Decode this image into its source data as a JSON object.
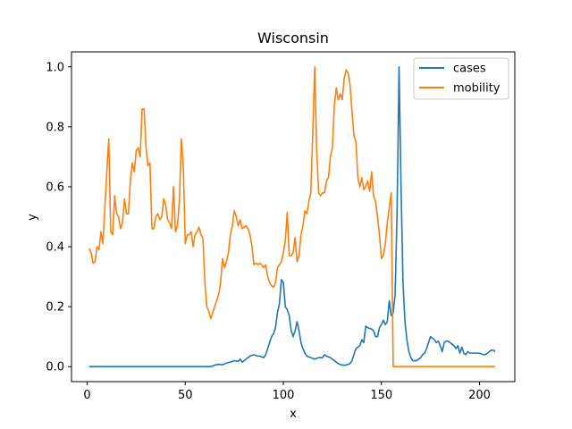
{
  "chart_data": {
    "type": "line",
    "title": "Wisconsin",
    "xlabel": "x",
    "ylabel": "y",
    "xlim": [
      -8,
      218
    ],
    "ylim": [
      -0.05,
      1.05
    ],
    "xticks": [
      0,
      50,
      100,
      150,
      200
    ],
    "yticks": [
      0.0,
      0.2,
      0.4,
      0.6,
      0.8,
      1.0
    ],
    "grid": false,
    "legend_position": "top-right",
    "series": [
      {
        "name": "cases",
        "color": "#1f77b4",
        "points": [
          [
            1,
            0
          ],
          [
            10,
            0
          ],
          [
            20,
            0
          ],
          [
            30,
            0
          ],
          [
            40,
            0
          ],
          [
            50,
            0
          ],
          [
            60,
            0
          ],
          [
            63,
            0
          ],
          [
            65,
            0.005
          ],
          [
            67,
            0.008
          ],
          [
            69,
            0.006
          ],
          [
            71,
            0.012
          ],
          [
            73,
            0.015
          ],
          [
            75,
            0.02
          ],
          [
            77,
            0.018
          ],
          [
            78,
            0.025
          ],
          [
            79,
            0.015
          ],
          [
            81,
            0.025
          ],
          [
            83,
            0.035
          ],
          [
            85,
            0.04
          ],
          [
            87,
            0.035
          ],
          [
            88,
            0.035
          ],
          [
            90,
            0.03
          ],
          [
            91,
            0.04
          ],
          [
            92,
            0.06
          ],
          [
            93,
            0.08
          ],
          [
            94,
            0.1
          ],
          [
            95,
            0.11
          ],
          [
            96,
            0.13
          ],
          [
            97,
            0.18
          ],
          [
            98,
            0.21
          ],
          [
            99,
            0.29
          ],
          [
            100,
            0.28
          ],
          [
            101,
            0.2
          ],
          [
            102,
            0.19
          ],
          [
            103,
            0.17
          ],
          [
            104,
            0.12
          ],
          [
            105,
            0.1
          ],
          [
            106,
            0.12
          ],
          [
            107,
            0.15
          ],
          [
            108,
            0.12
          ],
          [
            109,
            0.08
          ],
          [
            110,
            0.06
          ],
          [
            111,
            0.045
          ],
          [
            112,
            0.035
          ],
          [
            114,
            0.03
          ],
          [
            116,
            0.025
          ],
          [
            118,
            0.03
          ],
          [
            120,
            0.03
          ],
          [
            121,
            0.04
          ],
          [
            122,
            0.035
          ],
          [
            124,
            0.03
          ],
          [
            126,
            0.02
          ],
          [
            127,
            0.015
          ],
          [
            128,
            0.01
          ],
          [
            130,
            0.005
          ],
          [
            132,
            0.005
          ],
          [
            134,
            0.01
          ],
          [
            135,
            0.02
          ],
          [
            136,
            0.04
          ],
          [
            137,
            0.06
          ],
          [
            139,
            0.07
          ],
          [
            140,
            0.09
          ],
          [
            141,
            0.08
          ],
          [
            142,
            0.135
          ],
          [
            143,
            0.13
          ],
          [
            145,
            0.125
          ],
          [
            146,
            0.12
          ],
          [
            147,
            0.1
          ],
          [
            148,
            0.1
          ],
          [
            149,
            0.13
          ],
          [
            150,
            0.14
          ],
          [
            151,
            0.155
          ],
          [
            152,
            0.14
          ],
          [
            153,
            0.15
          ],
          [
            154,
            0.22
          ],
          [
            155,
            0.17
          ],
          [
            156,
            0.18
          ],
          [
            157,
            0.24
          ],
          [
            158,
            0.52
          ],
          [
            159,
            1.0
          ],
          [
            160,
            0.6
          ],
          [
            161,
            0.28
          ],
          [
            162,
            0.15
          ],
          [
            163,
            0.09
          ],
          [
            164,
            0.05
          ],
          [
            165,
            0.03
          ],
          [
            166,
            0.02
          ],
          [
            168,
            0.02
          ],
          [
            169,
            0.025
          ],
          [
            170,
            0.03
          ],
          [
            171,
            0.04
          ],
          [
            172,
            0.045
          ],
          [
            173,
            0.06
          ],
          [
            174,
            0.08
          ],
          [
            175,
            0.1
          ],
          [
            176,
            0.095
          ],
          [
            177,
            0.09
          ],
          [
            178,
            0.08
          ],
          [
            179,
            0.085
          ],
          [
            180,
            0.07
          ],
          [
            181,
            0.05
          ],
          [
            182,
            0.08
          ],
          [
            183,
            0.085
          ],
          [
            184,
            0.085
          ],
          [
            185,
            0.08
          ],
          [
            186,
            0.075
          ],
          [
            187,
            0.07
          ],
          [
            188,
            0.06
          ],
          [
            189,
            0.07
          ],
          [
            190,
            0.045
          ],
          [
            191,
            0.065
          ],
          [
            192,
            0.045
          ],
          [
            193,
            0.04
          ],
          [
            194,
            0.05
          ],
          [
            195,
            0.045
          ],
          [
            196,
            0.045
          ],
          [
            198,
            0.045
          ],
          [
            200,
            0.045
          ],
          [
            202,
            0.04
          ],
          [
            203,
            0.04
          ],
          [
            204,
            0.045
          ],
          [
            205,
            0.05
          ],
          [
            206,
            0.055
          ],
          [
            207,
            0.055
          ],
          [
            208,
            0.05
          ]
        ]
      },
      {
        "name": "mobility",
        "color": "#ff7f0e",
        "points": [
          [
            1,
            0.395
          ],
          [
            2,
            0.38
          ],
          [
            3,
            0.345
          ],
          [
            4,
            0.35
          ],
          [
            5,
            0.4
          ],
          [
            6,
            0.39
          ],
          [
            7,
            0.45
          ],
          [
            8,
            0.41
          ],
          [
            9,
            0.53
          ],
          [
            10,
            0.65
          ],
          [
            11,
            0.76
          ],
          [
            12,
            0.45
          ],
          [
            13,
            0.44
          ],
          [
            14,
            0.57
          ],
          [
            15,
            0.51
          ],
          [
            16,
            0.5
          ],
          [
            17,
            0.46
          ],
          [
            18,
            0.48
          ],
          [
            19,
            0.56
          ],
          [
            20,
            0.51
          ],
          [
            21,
            0.51
          ],
          [
            22,
            0.62
          ],
          [
            23,
            0.68
          ],
          [
            24,
            0.65
          ],
          [
            25,
            0.72
          ],
          [
            26,
            0.73
          ],
          [
            27,
            0.7
          ],
          [
            28,
            0.86
          ],
          [
            29,
            0.86
          ],
          [
            30,
            0.73
          ],
          [
            31,
            0.67
          ],
          [
            32,
            0.68
          ],
          [
            33,
            0.46
          ],
          [
            34,
            0.46
          ],
          [
            35,
            0.5
          ],
          [
            36,
            0.51
          ],
          [
            37,
            0.49
          ],
          [
            38,
            0.5
          ],
          [
            39,
            0.56
          ],
          [
            40,
            0.54
          ],
          [
            41,
            0.49
          ],
          [
            42,
            0.48
          ],
          [
            43,
            0.46
          ],
          [
            44,
            0.6
          ],
          [
            45,
            0.45
          ],
          [
            46,
            0.47
          ],
          [
            47,
            0.55
          ],
          [
            48,
            0.76
          ],
          [
            49,
            0.67
          ],
          [
            50,
            0.41
          ],
          [
            51,
            0.44
          ],
          [
            52,
            0.44
          ],
          [
            53,
            0.45
          ],
          [
            54,
            0.4
          ],
          [
            55,
            0.44
          ],
          [
            56,
            0.45
          ],
          [
            57,
            0.465
          ],
          [
            58,
            0.44
          ],
          [
            59,
            0.43
          ],
          [
            60,
            0.28
          ],
          [
            61,
            0.2
          ],
          [
            62,
            0.185
          ],
          [
            63,
            0.16
          ],
          [
            64,
            0.18
          ],
          [
            65,
            0.2
          ],
          [
            66,
            0.22
          ],
          [
            67,
            0.24
          ],
          [
            68,
            0.28
          ],
          [
            69,
            0.36
          ],
          [
            70,
            0.33
          ],
          [
            71,
            0.35
          ],
          [
            72,
            0.38
          ],
          [
            73,
            0.44
          ],
          [
            74,
            0.47
          ],
          [
            75,
            0.52
          ],
          [
            76,
            0.5
          ],
          [
            77,
            0.47
          ],
          [
            78,
            0.49
          ],
          [
            79,
            0.46
          ],
          [
            80,
            0.465
          ],
          [
            81,
            0.47
          ],
          [
            82,
            0.46
          ],
          [
            83,
            0.44
          ],
          [
            84,
            0.4
          ],
          [
            85,
            0.34
          ],
          [
            86,
            0.345
          ],
          [
            87,
            0.34
          ],
          [
            88,
            0.345
          ],
          [
            89,
            0.34
          ],
          [
            90,
            0.33
          ],
          [
            91,
            0.34
          ],
          [
            92,
            0.3
          ],
          [
            93,
            0.28
          ],
          [
            94,
            0.27
          ],
          [
            95,
            0.265
          ],
          [
            96,
            0.28
          ],
          [
            97,
            0.33
          ],
          [
            98,
            0.34
          ],
          [
            99,
            0.35
          ],
          [
            100,
            0.38
          ],
          [
            101,
            0.42
          ],
          [
            102,
            0.515
          ],
          [
            103,
            0.37
          ],
          [
            104,
            0.37
          ],
          [
            105,
            0.38
          ],
          [
            106,
            0.43
          ],
          [
            107,
            0.35
          ],
          [
            108,
            0.37
          ],
          [
            109,
            0.44
          ],
          [
            110,
            0.47
          ],
          [
            111,
            0.52
          ],
          [
            112,
            0.51
          ],
          [
            113,
            0.55
          ],
          [
            114,
            0.58
          ],
          [
            115,
            0.78
          ],
          [
            116,
            1.0
          ],
          [
            117,
            0.72
          ],
          [
            118,
            0.58
          ],
          [
            119,
            0.57
          ],
          [
            120,
            0.58
          ],
          [
            121,
            0.58
          ],
          [
            122,
            0.62
          ],
          [
            123,
            0.63
          ],
          [
            124,
            0.7
          ],
          [
            125,
            0.73
          ],
          [
            126,
            0.87
          ],
          [
            127,
            0.93
          ],
          [
            128,
            0.89
          ],
          [
            129,
            0.91
          ],
          [
            130,
            0.89
          ],
          [
            131,
            0.96
          ],
          [
            132,
            0.99
          ],
          [
            133,
            0.98
          ],
          [
            134,
            0.94
          ],
          [
            135,
            0.85
          ],
          [
            136,
            0.77
          ],
          [
            137,
            0.75
          ],
          [
            138,
            0.63
          ],
          [
            139,
            0.6
          ],
          [
            140,
            0.63
          ],
          [
            141,
            0.59
          ],
          [
            142,
            0.6
          ],
          [
            143,
            0.62
          ],
          [
            144,
            0.585
          ],
          [
            145,
            0.65
          ],
          [
            146,
            0.57
          ],
          [
            147,
            0.55
          ],
          [
            148,
            0.5
          ],
          [
            149,
            0.44
          ],
          [
            150,
            0.36
          ],
          [
            151,
            0.37
          ],
          [
            152,
            0.41
          ],
          [
            153,
            0.48
          ],
          [
            154,
            0.53
          ],
          [
            155,
            0.58
          ],
          [
            156,
            0.0
          ],
          [
            160,
            0.0
          ],
          [
            170,
            0.0
          ],
          [
            180,
            0.0
          ],
          [
            190,
            0.0
          ],
          [
            200,
            0.0
          ],
          [
            208,
            0.0
          ]
        ]
      }
    ]
  }
}
